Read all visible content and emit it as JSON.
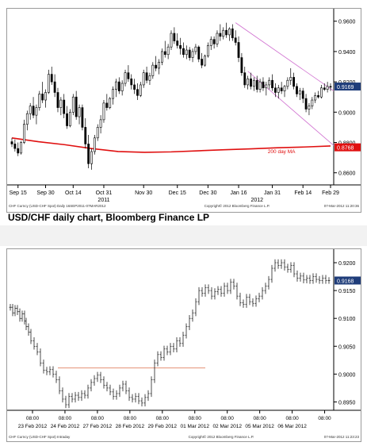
{
  "caption": "USD/CHF daily chart, Bloomberg Finance LP",
  "colors": {
    "up_candle": "#ffffff",
    "down_candle": "#000000",
    "moving_average": "#e01010",
    "channel": "#d070d0",
    "support_line": "#e08060",
    "last_price_box": "#1f3d7a",
    "ma_box": "#e01010"
  },
  "chart_data": [
    {
      "type": "candlestick",
      "title": "",
      "x_tick_labels": [
        "Sep 15",
        "Sep 30",
        "Oct 14",
        "Oct 31",
        "Nov 30",
        "Dec 15",
        "Dec 30",
        "Jan 16",
        "Jan 31",
        "Feb 14",
        "Feb 29"
      ],
      "x_year_labels": [
        "2011",
        "2012"
      ],
      "y_tick_labels": [
        "0.9600",
        "0.9400",
        "0.9200",
        "0.9000",
        "0.8800",
        "0.8600"
      ],
      "ylim": [
        0.852,
        0.963
      ],
      "last_price_label": "0.9169",
      "ma_value_label": "0.8768",
      "annotation": "200 day MA",
      "footer_left": "CHF Curncy (USD-CHF Spot) Daily 16SEP2011-07MAR2012",
      "footer_center": "Copyright© 2012 Bloomberg Finance L.P.",
      "footer_right": "07-Mar-2012 11:20:36",
      "series": [
        {
          "name": "200 day MA",
          "x": [
            0,
            10,
            20,
            30,
            40,
            50,
            60,
            70,
            80,
            90,
            100,
            110,
            120
          ],
          "values": [
            0.883,
            0.8805,
            0.8785,
            0.876,
            0.874,
            0.8735,
            0.8738,
            0.8745,
            0.8752,
            0.8758,
            0.8765,
            0.877,
            0.8777
          ]
        }
      ],
      "candles": [
        [
          0.8805,
          0.883,
          0.877,
          0.879
        ],
        [
          0.879,
          0.882,
          0.874,
          0.876
        ],
        [
          0.876,
          0.88,
          0.871,
          0.873
        ],
        [
          0.873,
          0.881,
          0.872,
          0.88
        ],
        [
          0.88,
          0.895,
          0.879,
          0.892
        ],
        [
          0.892,
          0.901,
          0.888,
          0.899
        ],
        [
          0.899,
          0.906,
          0.895,
          0.904
        ],
        [
          0.904,
          0.91,
          0.896,
          0.898
        ],
        [
          0.898,
          0.905,
          0.892,
          0.903
        ],
        [
          0.903,
          0.914,
          0.901,
          0.912
        ],
        [
          0.912,
          0.92,
          0.906,
          0.908
        ],
        [
          0.908,
          0.915,
          0.903,
          0.913
        ],
        [
          0.913,
          0.928,
          0.912,
          0.925
        ],
        [
          0.925,
          0.93,
          0.918,
          0.92
        ],
        [
          0.92,
          0.925,
          0.91,
          0.913
        ],
        [
          0.913,
          0.916,
          0.9,
          0.903
        ],
        [
          0.903,
          0.91,
          0.898,
          0.908
        ],
        [
          0.908,
          0.912,
          0.896,
          0.899
        ],
        [
          0.899,
          0.904,
          0.889,
          0.891
        ],
        [
          0.891,
          0.902,
          0.89,
          0.9
        ],
        [
          0.9,
          0.912,
          0.898,
          0.91
        ],
        [
          0.91,
          0.914,
          0.895,
          0.897
        ],
        [
          0.897,
          0.905,
          0.892,
          0.903
        ],
        [
          0.903,
          0.905,
          0.888,
          0.89
        ],
        [
          0.89,
          0.896,
          0.876,
          0.879
        ],
        [
          0.879,
          0.885,
          0.863,
          0.866
        ],
        [
          0.866,
          0.876,
          0.862,
          0.874
        ],
        [
          0.874,
          0.885,
          0.872,
          0.883
        ],
        [
          0.883,
          0.892,
          0.881,
          0.89
        ],
        [
          0.89,
          0.898,
          0.886,
          0.895
        ],
        [
          0.895,
          0.908,
          0.893,
          0.906
        ],
        [
          0.906,
          0.912,
          0.901,
          0.903
        ],
        [
          0.903,
          0.91,
          0.902,
          0.909
        ],
        [
          0.909,
          0.917,
          0.905,
          0.915
        ],
        [
          0.915,
          0.922,
          0.91,
          0.92
        ],
        [
          0.92,
          0.923,
          0.912,
          0.914
        ],
        [
          0.914,
          0.921,
          0.911,
          0.919
        ],
        [
          0.919,
          0.928,
          0.917,
          0.926
        ],
        [
          0.926,
          0.931,
          0.92,
          0.922
        ],
        [
          0.922,
          0.925,
          0.915,
          0.918
        ],
        [
          0.918,
          0.922,
          0.912,
          0.915
        ],
        [
          0.915,
          0.919,
          0.908,
          0.911
        ],
        [
          0.911,
          0.92,
          0.91,
          0.918
        ],
        [
          0.918,
          0.928,
          0.916,
          0.926
        ],
        [
          0.926,
          0.93,
          0.919,
          0.921
        ],
        [
          0.921,
          0.926,
          0.918,
          0.924
        ],
        [
          0.924,
          0.933,
          0.922,
          0.931
        ],
        [
          0.931,
          0.937,
          0.927,
          0.929
        ],
        [
          0.929,
          0.935,
          0.925,
          0.933
        ],
        [
          0.933,
          0.942,
          0.931,
          0.94
        ],
        [
          0.94,
          0.947,
          0.936,
          0.938
        ],
        [
          0.938,
          0.945,
          0.935,
          0.943
        ],
        [
          0.943,
          0.954,
          0.941,
          0.952
        ],
        [
          0.952,
          0.956,
          0.945,
          0.947
        ],
        [
          0.947,
          0.952,
          0.942,
          0.944
        ],
        [
          0.944,
          0.949,
          0.938,
          0.942
        ],
        [
          0.942,
          0.946,
          0.936,
          0.938
        ],
        [
          0.938,
          0.944,
          0.935,
          0.941
        ],
        [
          0.941,
          0.943,
          0.934,
          0.936
        ],
        [
          0.936,
          0.942,
          0.933,
          0.94
        ],
        [
          0.94,
          0.945,
          0.938,
          0.943
        ],
        [
          0.943,
          0.944,
          0.933,
          0.935
        ],
        [
          0.935,
          0.939,
          0.929,
          0.931
        ],
        [
          0.931,
          0.938,
          0.93,
          0.937
        ],
        [
          0.937,
          0.946,
          0.936,
          0.944
        ],
        [
          0.944,
          0.95,
          0.941,
          0.948
        ],
        [
          0.948,
          0.95,
          0.942,
          0.945
        ],
        [
          0.945,
          0.954,
          0.943,
          0.952
        ],
        [
          0.952,
          0.958,
          0.947,
          0.95
        ],
        [
          0.95,
          0.956,
          0.948,
          0.954
        ],
        [
          0.954,
          0.959,
          0.949,
          0.951
        ],
        [
          0.951,
          0.956,
          0.947,
          0.955
        ],
        [
          0.955,
          0.958,
          0.947,
          0.949
        ],
        [
          0.949,
          0.954,
          0.944,
          0.946
        ],
        [
          0.946,
          0.95,
          0.933,
          0.936
        ],
        [
          0.936,
          0.939,
          0.924,
          0.926
        ],
        [
          0.926,
          0.93,
          0.916,
          0.918
        ],
        [
          0.918,
          0.924,
          0.915,
          0.922
        ],
        [
          0.922,
          0.926,
          0.915,
          0.917
        ],
        [
          0.917,
          0.923,
          0.914,
          0.921
        ],
        [
          0.921,
          0.924,
          0.913,
          0.915
        ],
        [
          0.915,
          0.922,
          0.913,
          0.92
        ],
        [
          0.92,
          0.923,
          0.914,
          0.916
        ],
        [
          0.916,
          0.92,
          0.911,
          0.918
        ],
        [
          0.918,
          0.923,
          0.915,
          0.921
        ],
        [
          0.921,
          0.925,
          0.914,
          0.916
        ],
        [
          0.916,
          0.919,
          0.91,
          0.913
        ],
        [
          0.913,
          0.918,
          0.909,
          0.916
        ],
        [
          0.916,
          0.92,
          0.912,
          0.914
        ],
        [
          0.914,
          0.918,
          0.91,
          0.917
        ],
        [
          0.917,
          0.923,
          0.915,
          0.921
        ],
        [
          0.921,
          0.929,
          0.918,
          0.923
        ],
        [
          0.923,
          0.926,
          0.915,
          0.917
        ],
        [
          0.917,
          0.919,
          0.91,
          0.912
        ],
        [
          0.912,
          0.916,
          0.908,
          0.914
        ],
        [
          0.914,
          0.916,
          0.906,
          0.909
        ],
        [
          0.909,
          0.912,
          0.9,
          0.902
        ],
        [
          0.902,
          0.906,
          0.898,
          0.904
        ],
        [
          0.904,
          0.91,
          0.902,
          0.908
        ],
        [
          0.908,
          0.913,
          0.906,
          0.911
        ],
        [
          0.911,
          0.914,
          0.909,
          0.91
        ],
        [
          0.91,
          0.918,
          0.909,
          0.916
        ],
        [
          0.916,
          0.919,
          0.914,
          0.915
        ],
        [
          0.915,
          0.92,
          0.913,
          0.917
        ],
        [
          0.917,
          0.919,
          0.914,
          0.9169
        ]
      ]
    },
    {
      "type": "ohlc",
      "title": "",
      "x_tick_labels": [
        "08:00",
        "08:00",
        "08:00",
        "08:00",
        "08:00",
        "08:00",
        "08:00",
        "08:00",
        "08:00",
        "08:00"
      ],
      "x_date_labels": [
        "23 Feb 2012",
        "24 Feb 2012",
        "27 Feb 2012",
        "28 Feb 2012",
        "29 Feb 2012",
        "01 Mar 2012",
        "02 Mar 2012",
        "05 Mar 2012",
        "06 Mar 2012",
        ""
      ],
      "y_tick_labels": [
        "0.9200",
        "0.9150",
        "0.9100",
        "0.9050",
        "0.9000",
        "0.8950"
      ],
      "ylim": [
        0.8935,
        0.921
      ],
      "last_price_label": "0.9168",
      "support_level": 0.9011,
      "footer_left": "CHF Curncy (USD-CHF Spot) Intraday",
      "footer_center": "Copyright© 2012 Bloomberg Finance L.P.",
      "footer_right": "07-Mar-2012 11:23:23",
      "series": [
        {
          "x": [
            0,
            3,
            6,
            9,
            12,
            15,
            18,
            20,
            23,
            26,
            30,
            34,
            38,
            42,
            46,
            50,
            54,
            58,
            62,
            66,
            70,
            74,
            78,
            82,
            86,
            90,
            94,
            98,
            102,
            106,
            110,
            114,
            118,
            122,
            126,
            130,
            134,
            138,
            142,
            146,
            150,
            154,
            158,
            162,
            166,
            170,
            174,
            178,
            182,
            186,
            190,
            194,
            198,
            202,
            206,
            210,
            214,
            218,
            222,
            226,
            230,
            234,
            238,
            242,
            246,
            250,
            254,
            258,
            262,
            266,
            270,
            274,
            278,
            282,
            286,
            290,
            294,
            298,
            302,
            306,
            310,
            314,
            318,
            322,
            326,
            330,
            334,
            338,
            342,
            346,
            350,
            354,
            358,
            362,
            366,
            370,
            374,
            378,
            382,
            386,
            390,
            394,
            398,
            402
          ],
          "values": [
            0.912,
            0.911,
            0.9118,
            0.9112,
            0.91,
            0.9108,
            0.9095,
            0.9085,
            0.9075,
            0.906,
            0.905,
            0.904,
            0.902,
            0.9007,
            0.9004,
            0.9008,
            0.9,
            0.899,
            0.897,
            0.8955,
            0.8945,
            0.896,
            0.8955,
            0.8962,
            0.8958,
            0.8965,
            0.8962,
            0.8975,
            0.8985,
            0.8992,
            0.8998,
            0.899,
            0.898,
            0.8975,
            0.8968,
            0.896,
            0.8965,
            0.8975,
            0.8982,
            0.897,
            0.8958,
            0.8955,
            0.896,
            0.8952,
            0.8948,
            0.8958,
            0.8965,
            0.899,
            0.902,
            0.9035,
            0.903,
            0.9045,
            0.904,
            0.905,
            0.9045,
            0.906,
            0.9055,
            0.907,
            0.9085,
            0.91,
            0.911,
            0.913,
            0.915,
            0.9145,
            0.9155,
            0.915,
            0.914,
            0.9148,
            0.9152,
            0.9145,
            0.9158,
            0.915,
            0.9165,
            0.9158,
            0.914,
            0.9128,
            0.9125,
            0.9138,
            0.913,
            0.9127,
            0.9135,
            0.914,
            0.915,
            0.9158,
            0.917,
            0.919,
            0.92,
            0.9195,
            0.92,
            0.9192,
            0.9188,
            0.9195,
            0.918,
            0.9172,
            0.9176,
            0.9169,
            0.9172,
            0.9168,
            0.9175,
            0.917,
            0.9168,
            0.9172,
            0.9168,
            0.9168
          ]
        }
      ]
    }
  ]
}
